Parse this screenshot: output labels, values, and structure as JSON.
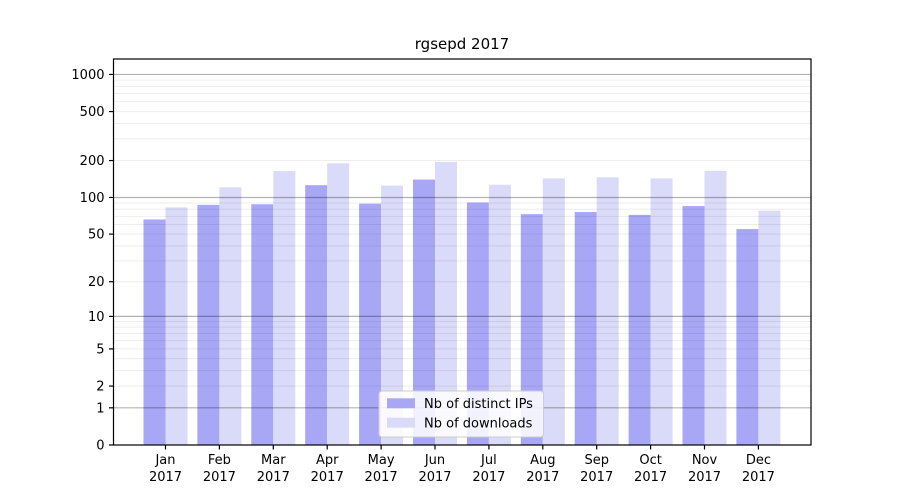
{
  "chart_data": {
    "type": "bar",
    "title": "rgsepd 2017",
    "categories": [
      "Jan",
      "Feb",
      "Mar",
      "Apr",
      "May",
      "Jun",
      "Jul",
      "Aug",
      "Sep",
      "Oct",
      "Nov",
      "Dec"
    ],
    "category_year": "2017",
    "series": [
      {
        "name": "Nb of distinct IPs",
        "color": "#a7a7f6",
        "values": [
          66,
          87,
          88,
          126,
          89,
          140,
          91,
          73,
          76,
          72,
          85,
          55
        ]
      },
      {
        "name": "Nb of downloads",
        "color": "#dadaf9",
        "values": [
          83,
          121,
          164,
          190,
          125,
          195,
          127,
          143,
          146,
          143,
          165,
          78
        ]
      }
    ],
    "yscale": "log1p",
    "ylim": [
      0,
      1335
    ],
    "yticks": [
      0,
      1,
      2,
      5,
      10,
      20,
      50,
      100,
      200,
      500,
      1000
    ],
    "major_gridlines": [
      1,
      10,
      100,
      1000
    ],
    "minor_gridline_steps": [
      2,
      3,
      4,
      5,
      6,
      7,
      8,
      9
    ],
    "grid": true,
    "legend_position": "lower-center",
    "colors": {
      "spine": "#000000",
      "tick_label": "#000000",
      "major_grid": "rgba(0,0,0,0.30)",
      "minor_grid": "rgba(0,0,0,0.07)",
      "legend_border": "#cccccc",
      "legend_bg": "rgba(255,255,255,0.85)",
      "background": "#ffffff"
    }
  }
}
